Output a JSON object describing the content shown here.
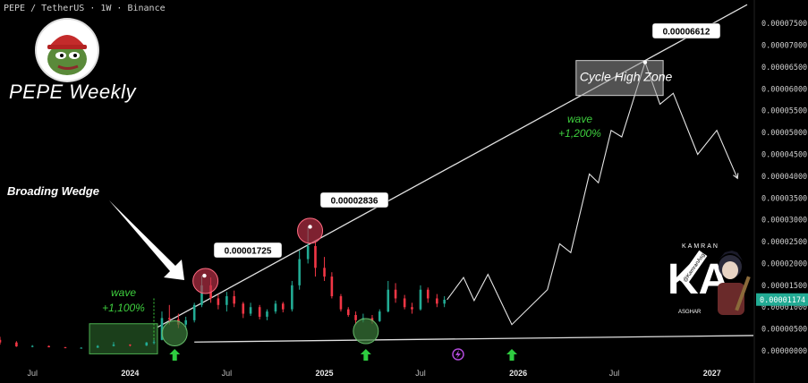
{
  "header": {
    "symbol_line": "PEPE / TetherUS · 1W · Binance"
  },
  "brand": {
    "logo_icon": "pepe-frog-logo-icon",
    "title": "PEPE Weekly"
  },
  "colors": {
    "up": "#22ab94",
    "down": "#f23645",
    "projection": "#e6e6e6",
    "highlight_red": "#c2334a",
    "highlight_green": "#3a7a3a",
    "price_tag": "#22ab94",
    "annotation_green": "#3ecf3e"
  },
  "chart_data": {
    "type": "candlestick",
    "title": "PEPE Weekly",
    "xlabel": "",
    "ylabel": "",
    "x_ticks": [
      "Jul",
      "2024",
      "Jul",
      "2025",
      "Jul",
      "2026",
      "Jul",
      "2027"
    ],
    "y_ticks": [
      "0.00007500",
      "0.00007000",
      "0.00006500",
      "0.00006000",
      "0.00005500",
      "0.00005000",
      "0.00004500",
      "0.00004000",
      "0.00003500",
      "0.00003000",
      "0.00002500",
      "0.00002000",
      "0.00001500",
      "0.00001000",
      "0.00000500",
      "0.00000000"
    ],
    "ylim": [
      0,
      7.75e-05
    ],
    "xlim": [
      "2023-05-01",
      "2027-03-20"
    ],
    "current_price": "0.00001174",
    "candles": [
      {
        "t": "2023-05-01",
        "o": 2.5e-06,
        "h": 3.2e-06,
        "l": 1.4e-06,
        "c": 1.9e-06
      },
      {
        "t": "2023-06-01",
        "o": 1.9e-06,
        "h": 2.2e-06,
        "l": 9e-07,
        "c": 1e-06
      },
      {
        "t": "2023-07-01",
        "o": 1e-06,
        "h": 1.3e-06,
        "l": 8e-07,
        "c": 1.1e-06
      },
      {
        "t": "2023-08-01",
        "o": 1.1e-06,
        "h": 1.2e-06,
        "l": 8e-07,
        "c": 8e-07
      },
      {
        "t": "2023-09-01",
        "o": 8e-07,
        "h": 9e-07,
        "l": 6e-07,
        "c": 7e-07
      },
      {
        "t": "2023-10-01",
        "o": 7e-07,
        "h": 8e-07,
        "l": 6e-07,
        "c": 7e-07
      },
      {
        "t": "2023-11-01",
        "o": 7e-07,
        "h": 1.3e-06,
        "l": 7e-07,
        "c": 1.1e-06
      },
      {
        "t": "2023-12-01",
        "o": 1.1e-06,
        "h": 2e-06,
        "l": 1e-06,
        "c": 1.4e-06
      },
      {
        "t": "2024-01-01",
        "o": 1.4e-06,
        "h": 1.5e-06,
        "l": 1e-06,
        "c": 1.2e-06
      },
      {
        "t": "2024-02-01",
        "o": 1.2e-06,
        "h": 2e-06,
        "l": 1.1e-06,
        "c": 1.9e-06
      },
      {
        "t": "2024-02-15",
        "o": 1.9e-06,
        "h": 2.5e-06,
        "l": 1.5e-06,
        "c": 2e-06
      },
      {
        "t": "2024-03-01",
        "o": 2.5e-06,
        "h": 9e-06,
        "l": 2.4e-06,
        "c": 7.5e-06
      },
      {
        "t": "2024-03-15",
        "o": 7.5e-06,
        "h": 1.05e-05,
        "l": 6e-06,
        "c": 7.2e-06
      },
      {
        "t": "2024-04-01",
        "o": 7.2e-06,
        "h": 8.5e-06,
        "l": 5.2e-06,
        "c": 6e-06
      },
      {
        "t": "2024-04-15",
        "o": 6e-06,
        "h": 7.8e-06,
        "l": 4.8e-06,
        "c": 7e-06
      },
      {
        "t": "2024-05-01",
        "o": 7e-06,
        "h": 1.1e-05,
        "l": 6.5e-06,
        "c": 1.05e-05
      },
      {
        "t": "2024-05-15",
        "o": 1.05e-05,
        "h": 1.72e-05,
        "l": 1e-05,
        "c": 1.5e-05
      },
      {
        "t": "2024-06-01",
        "o": 1.5e-05,
        "h": 1.68e-05,
        "l": 1.1e-05,
        "c": 1.2e-05
      },
      {
        "t": "2024-06-15",
        "o": 1.2e-05,
        "h": 1.3e-05,
        "l": 9.5e-06,
        "c": 1.05e-05
      },
      {
        "t": "2024-07-01",
        "o": 1.05e-05,
        "h": 1.35e-05,
        "l": 9e-06,
        "c": 1.25e-05
      },
      {
        "t": "2024-07-15",
        "o": 1.25e-05,
        "h": 1.38e-05,
        "l": 1e-05,
        "c": 1.08e-05
      },
      {
        "t": "2024-08-01",
        "o": 1.08e-05,
        "h": 1.12e-05,
        "l": 7.5e-06,
        "c": 8.5e-06
      },
      {
        "t": "2024-08-15",
        "o": 8.5e-06,
        "h": 1.1e-05,
        "l": 8e-06,
        "c": 1e-05
      },
      {
        "t": "2024-09-01",
        "o": 1e-05,
        "h": 1.05e-05,
        "l": 7.2e-06,
        "c": 7.8e-06
      },
      {
        "t": "2024-09-15",
        "o": 7.8e-06,
        "h": 9.5e-06,
        "l": 7e-06,
        "c": 9e-06
      },
      {
        "t": "2024-10-01",
        "o": 9e-06,
        "h": 1.15e-05,
        "l": 8.5e-06,
        "c": 1.08e-05
      },
      {
        "t": "2024-10-15",
        "o": 1.08e-05,
        "h": 1.12e-05,
        "l": 8.8e-06,
        "c": 9.5e-06
      },
      {
        "t": "2024-11-01",
        "o": 9.5e-06,
        "h": 1.6e-05,
        "l": 9e-06,
        "c": 1.5e-05
      },
      {
        "t": "2024-11-15",
        "o": 1.5e-05,
        "h": 2.3e-05,
        "l": 1.4e-05,
        "c": 2.1e-05
      },
      {
        "t": "2024-12-01",
        "o": 2.1e-05,
        "h": 2.84e-05,
        "l": 2e-05,
        "c": 2.4e-05
      },
      {
        "t": "2024-12-15",
        "o": 2.4e-05,
        "h": 2.5e-05,
        "l": 1.7e-05,
        "c": 1.9e-05
      },
      {
        "t": "2025-01-01",
        "o": 1.9e-05,
        "h": 2.15e-05,
        "l": 1.6e-05,
        "c": 1.7e-05
      },
      {
        "t": "2025-01-15",
        "o": 1.7e-05,
        "h": 1.8e-05,
        "l": 1.2e-05,
        "c": 1.25e-05
      },
      {
        "t": "2025-02-01",
        "o": 1.25e-05,
        "h": 1.3e-05,
        "l": 9e-06,
        "c": 9.5e-06
      },
      {
        "t": "2025-02-15",
        "o": 9.5e-06,
        "h": 1e-05,
        "l": 7.8e-06,
        "c": 8.2e-06
      },
      {
        "t": "2025-03-01",
        "o": 8.2e-06,
        "h": 9e-06,
        "l": 6e-06,
        "c": 7e-06
      },
      {
        "t": "2025-03-15",
        "o": 7e-06,
        "h": 8.5e-06,
        "l": 6.5e-06,
        "c": 7.5e-06
      },
      {
        "t": "2025-04-01",
        "o": 7.5e-06,
        "h": 8.2e-06,
        "l": 6.2e-06,
        "c": 6.8e-06
      },
      {
        "t": "2025-04-15",
        "o": 6.8e-06,
        "h": 9.5e-06,
        "l": 6.6e-06,
        "c": 9e-06
      },
      {
        "t": "2025-05-01",
        "o": 9e-06,
        "h": 1.6e-05,
        "l": 8.8e-06,
        "c": 1.4e-05
      },
      {
        "t": "2025-05-15",
        "o": 1.4e-05,
        "h": 1.55e-05,
        "l": 1.1e-05,
        "c": 1.2e-05
      },
      {
        "t": "2025-06-01",
        "o": 1.2e-05,
        "h": 1.28e-05,
        "l": 9.5e-06,
        "c": 1e-05
      },
      {
        "t": "2025-06-15",
        "o": 1e-05,
        "h": 1.1e-05,
        "l": 8.5e-06,
        "c": 9.5e-06
      },
      {
        "t": "2025-07-01",
        "o": 9.5e-06,
        "h": 1.5e-05,
        "l": 9.2e-06,
        "c": 1.4e-05
      },
      {
        "t": "2025-07-15",
        "o": 1.4e-05,
        "h": 1.45e-05,
        "l": 1.1e-05,
        "c": 1.2e-05
      },
      {
        "t": "2025-08-01",
        "o": 1.2e-05,
        "h": 1.3e-05,
        "l": 1e-05,
        "c": 1.08e-05
      },
      {
        "t": "2025-08-15",
        "o": 1.08e-05,
        "h": 1.25e-05,
        "l": 1e-05,
        "c": 1.17e-05
      }
    ],
    "projection": [
      {
        "t": "2025-08-20",
        "v": 1.17e-05
      },
      {
        "t": "2025-09-20",
        "v": 1.68e-05
      },
      {
        "t": "2025-10-10",
        "v": 1.15e-05
      },
      {
        "t": "2025-11-05",
        "v": 1.75e-05
      },
      {
        "t": "2025-12-20",
        "v": 6e-06
      },
      {
        "t": "2026-02-25",
        "v": 1.4e-05
      },
      {
        "t": "2026-03-20",
        "v": 2.45e-05
      },
      {
        "t": "2026-04-10",
        "v": 2.25e-05
      },
      {
        "t": "2026-05-15",
        "v": 4.05e-05
      },
      {
        "t": "2026-06-01",
        "v": 3.85e-05
      },
      {
        "t": "2026-06-25",
        "v": 5.05e-05
      },
      {
        "t": "2026-07-15",
        "v": 4.9e-05
      },
      {
        "t": "2026-08-28",
        "v": 6.61e-05
      },
      {
        "t": "2026-09-25",
        "v": 5.65e-05
      },
      {
        "t": "2026-10-20",
        "v": 5.9e-05
      },
      {
        "t": "2026-12-05",
        "v": 4.5e-05
      },
      {
        "t": "2027-01-10",
        "v": 5.05e-05
      },
      {
        "t": "2027-02-18",
        "v": 3.95e-05
      }
    ],
    "annotations": {
      "broadening_wedge": "Broading Wedge",
      "wave_left": "wave\n+1,100%",
      "wave_right": "wave\n+1,200%",
      "cycle_high_zone": "Cycle High Zone",
      "peak_labels": [
        "0.00001725",
        "0.00002836",
        "0.00006612"
      ]
    }
  },
  "watermark": {
    "brand": "KAMRAN",
    "letters": "KA",
    "ribbon": "@KamranAsghar",
    "name": "ASGHAR"
  }
}
